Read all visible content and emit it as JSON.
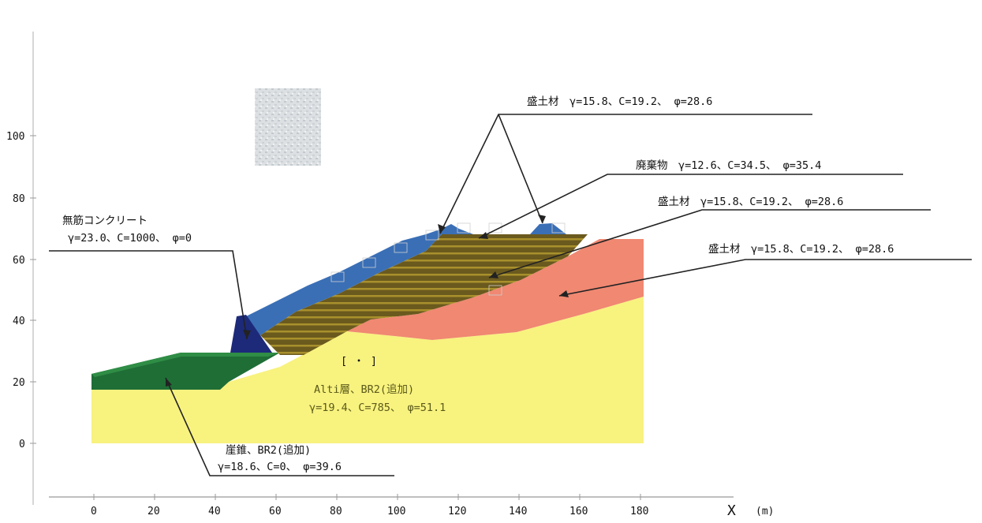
{
  "axes": {
    "y_ticks": [
      "100",
      "80",
      "60",
      "40",
      "20",
      "0"
    ],
    "x_ticks": [
      "0",
      "20",
      "40",
      "60",
      "80",
      "100",
      "120",
      "140",
      "160",
      "180"
    ],
    "x_label": "X",
    "x_unit": "(m)"
  },
  "annotations": {
    "mochizai_top": "盛土材　γ=15.8、C=19.2、 φ=28.6",
    "haikibutsu": "廃棄物　γ=12.6、C=34.5、 φ=35.4",
    "mochizai_mid": "盛土材　γ=15.8、C=19.2、 φ=28.6",
    "mochizai_right": "盛土材　γ=15.8、C=19.2、 φ=28.6",
    "concrete_title": "無筋コンクリート",
    "concrete_params": "γ=23.0、C=1000、 φ=0",
    "alti_title": "Alti層、BR2(追加)",
    "alti_params": "γ=19.4、C=785、 φ=51.1",
    "gaisui_title": "崖錐、BR2(追加)",
    "gaisui_params": "γ=18.6、C=0、 φ=39.6",
    "marker": "[ ・ ]"
  },
  "colors": {
    "yellow_layer": "#f8f27f",
    "salmon_layer": "#f08872",
    "green_layer": "#1f6e36",
    "green_top": "#2f8d45",
    "waste_layer": "#6b5a1e",
    "waste_stripe": "#a8902c",
    "blue_cover": "#3a6fb6",
    "concrete": "#1d2a7a"
  }
}
